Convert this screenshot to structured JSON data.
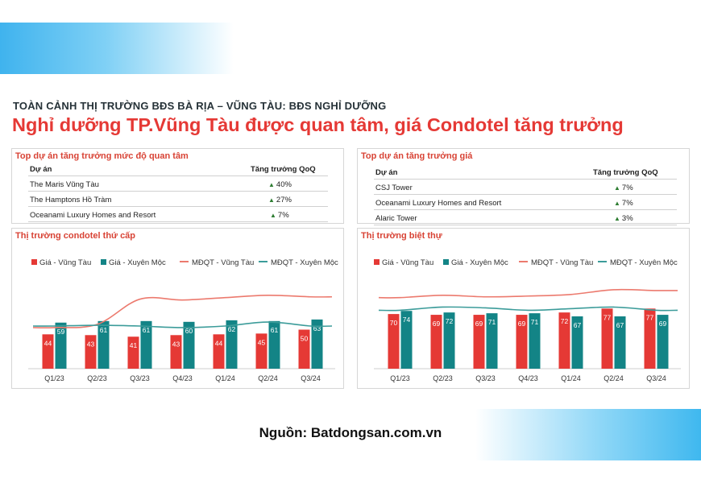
{
  "header": {
    "subtitle": "TOÀN CẢNH THỊ TRƯỜNG BĐS BÀ RỊA – VŨNG TÀU: BĐS NGHỈ DƯỠNG",
    "title": "Nghỉ dưỡng TP.Vũng Tàu được quan tâm, giá Condotel tăng trưởng"
  },
  "colors": {
    "bar_vungtau": "#e53935",
    "bar_xuyenmoc": "#138486",
    "line_vungtau": "#ec7a6e",
    "line_xuyenmoc": "#3c9c9a",
    "growth_up": "#2e7d32"
  },
  "interest_table": {
    "title": "Top dự án tăng trưởng mức độ quan tâm",
    "col_project": "Dự án",
    "col_growth": "Tăng trưởng QoQ",
    "rows": [
      {
        "name": "The Maris Vũng Tàu",
        "growth": "40%"
      },
      {
        "name": "The Hamptons Hồ Tràm",
        "growth": "27%"
      },
      {
        "name": "Oceanami Luxury Homes and Resort",
        "growth": "7%"
      }
    ]
  },
  "price_table": {
    "title": "Top dự án tăng trưởng giá",
    "col_project": "Dự án",
    "col_growth": "Tăng trưởng QoQ",
    "rows": [
      {
        "name": "CSJ Tower",
        "growth": "7%"
      },
      {
        "name": "Oceanami Luxury Homes and Resort",
        "growth": "7%"
      },
      {
        "name": "Alaric Tower",
        "growth": "3%"
      }
    ]
  },
  "chart_data": [
    {
      "type": "bar",
      "title": "Thị trường condotel thứ cấp",
      "categories": [
        "Q1/23",
        "Q2/23",
        "Q3/23",
        "Q4/23",
        "Q1/24",
        "Q2/24",
        "Q3/24"
      ],
      "series": [
        {
          "name": "Giá - Vũng Tàu",
          "type": "bar",
          "values": [
            44,
            43,
            41,
            43,
            44,
            45,
            50
          ]
        },
        {
          "name": "Giá - Xuyên Mộc",
          "type": "bar",
          "values": [
            59,
            61,
            61,
            60,
            62,
            61,
            63
          ]
        },
        {
          "name": "MĐQT - Vũng Tàu",
          "type": "line",
          "values": [
            48,
            52,
            84,
            83,
            86,
            89,
            87
          ]
        },
        {
          "name": "MĐQT - Xuyên Mộc",
          "type": "line",
          "values": [
            50,
            51,
            50,
            48,
            50,
            55,
            50
          ]
        }
      ],
      "legend_position": "top",
      "grid": false
    },
    {
      "type": "bar",
      "title": "Thị trường biệt thự",
      "categories": [
        "Q1/23",
        "Q2/23",
        "Q3/23",
        "Q4/23",
        "Q1/24",
        "Q2/24",
        "Q3/24"
      ],
      "series": [
        {
          "name": "Giá - Vũng Tàu",
          "type": "bar",
          "values": [
            70,
            69,
            69,
            69,
            72,
            77,
            77
          ]
        },
        {
          "name": "Giá - Xuyên Mộc",
          "type": "bar",
          "values": [
            74,
            72,
            71,
            71,
            67,
            67,
            69
          ]
        },
        {
          "name": "MĐQT - Vũng Tàu",
          "type": "line",
          "values": [
            86,
            89,
            87,
            88,
            90,
            96,
            95
          ]
        },
        {
          "name": "MĐQT - Xuyên Mộc",
          "type": "line",
          "values": [
            70,
            74,
            73,
            70,
            72,
            74,
            70
          ]
        }
      ],
      "legend_position": "top",
      "grid": false
    }
  ],
  "footer": {
    "source": "Nguồn: Batdongsan.com.vn"
  }
}
